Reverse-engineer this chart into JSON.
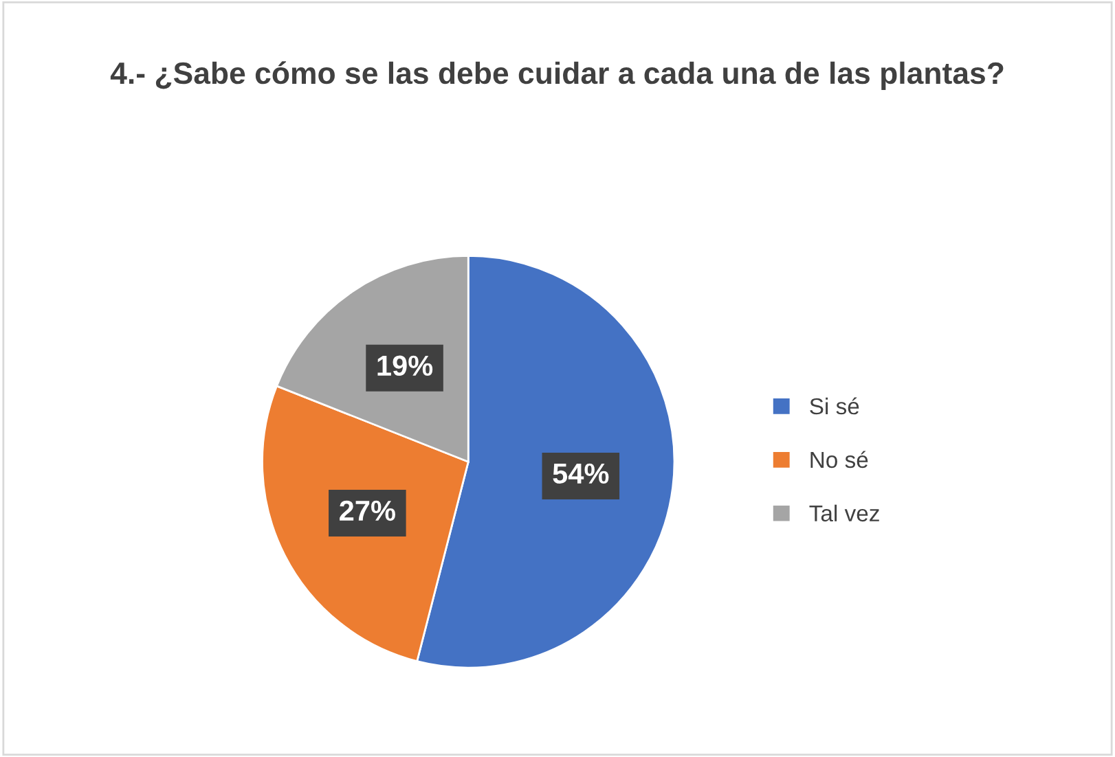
{
  "chart_data": {
    "type": "pie",
    "title": "4.- ¿Sabe cómo se las debe cuidar a cada una de las plantas?",
    "categories": [
      "Si sé",
      "No sé",
      "Tal vez"
    ],
    "values": [
      54,
      27,
      19
    ],
    "colors": [
      "#4472c4",
      "#ed7d31",
      "#a5a5a5"
    ],
    "value_labels": [
      "54%",
      "27%",
      "19%"
    ],
    "legend": "right"
  }
}
